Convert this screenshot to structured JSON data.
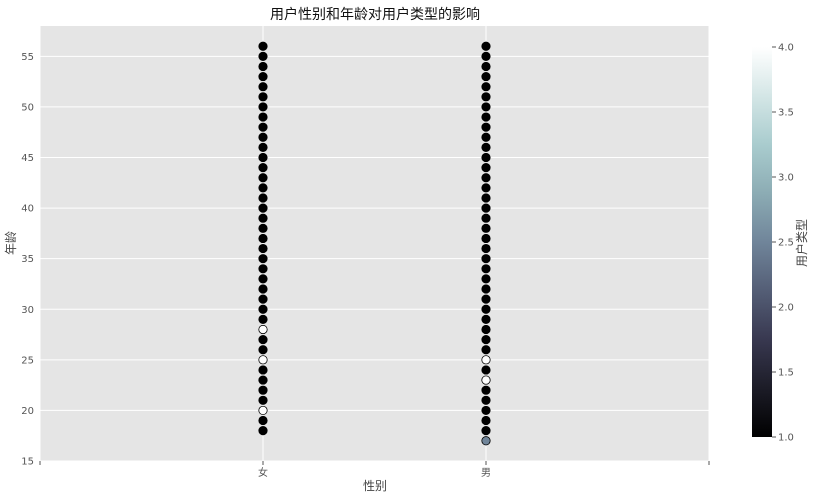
{
  "chart_data": {
    "type": "scatter",
    "title": "用户性别和年龄对用户类型的影响",
    "xlabel": "性别",
    "ylabel": "年龄",
    "x_categories": [
      "女",
      "男"
    ],
    "xlim": [
      -1,
      2
    ],
    "ylim": [
      15,
      58
    ],
    "y_ticks": [
      15,
      20,
      25,
      30,
      35,
      40,
      45,
      50,
      55
    ],
    "grid": true,
    "background_color": "#e5e5e5",
    "grid_color": "#ffffff",
    "colormap": "bone",
    "colorbar": {
      "label": "用户类型",
      "range": [
        1.0,
        4.0
      ],
      "ticks": [
        "1.0",
        "1.5",
        "2.0",
        "2.5",
        "3.0",
        "3.5",
        "4.0"
      ]
    },
    "series": [
      {
        "category": "女",
        "age_range": [
          18,
          56
        ],
        "default_value": 1.0,
        "overrides": [
          {
            "age": 20,
            "value": 4.0
          },
          {
            "age": 25,
            "value": 4.0
          },
          {
            "age": 28,
            "value": 4.0
          }
        ]
      },
      {
        "category": "男",
        "age_range": [
          17,
          56
        ],
        "default_value": 1.0,
        "overrides": [
          {
            "age": 17,
            "value": 2.5
          },
          {
            "age": 23,
            "value": 4.0
          },
          {
            "age": 25,
            "value": 4.0
          }
        ]
      }
    ]
  }
}
